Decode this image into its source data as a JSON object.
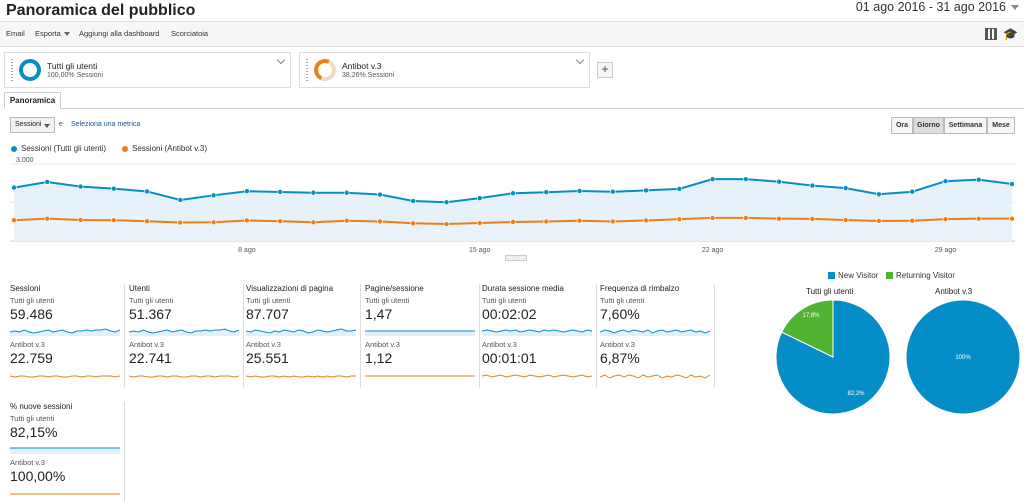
{
  "header": {
    "title": "Panoramica del pubblico",
    "date_range": "01 ago 2016 - 31 ago 2016"
  },
  "toolbar": {
    "email": "Email",
    "export": "Esporta",
    "add_dashboard": "Aggiungi alla dashboard",
    "shortcut": "Scorciatoia"
  },
  "segments": [
    {
      "name": "Tutti gli utenti",
      "sub": "100,00% Sessioni",
      "color": "#058dc7"
    },
    {
      "name": "Antibot v.3",
      "sub": "38,26% Sessioni",
      "color": "#ed7e17"
    }
  ],
  "tabs": {
    "overview": "Panoramica"
  },
  "controls": {
    "metric": "Sessioni",
    "vs": "e",
    "select_metric": "Seleziona una metrica",
    "periods": [
      "Ora",
      "Giorno",
      "Settimana",
      "Mese"
    ],
    "active_period": "Giorno"
  },
  "chart_data": {
    "type": "line",
    "series": [
      {
        "name": "Sessioni (Tutti gli utenti)",
        "color": "#058dc7",
        "values": [
          2080,
          2300,
          2120,
          2040,
          1930,
          1600,
          1780,
          1940,
          1910,
          1880,
          1880,
          1810,
          1560,
          1510,
          1670,
          1860,
          1900,
          1950,
          1920,
          1970,
          2030,
          2410,
          2410,
          2310,
          2160,
          2060,
          1820,
          1920,
          2330,
          2390,
          2220
        ]
      },
      {
        "name": "Sessioni (Antibot v.3)",
        "color": "#ed7e17",
        "values": [
          810,
          870,
          820,
          810,
          770,
          720,
          730,
          800,
          770,
          730,
          790,
          760,
          690,
          660,
          700,
          740,
          760,
          790,
          760,
          800,
          850,
          900,
          900,
          870,
          860,
          820,
          780,
          790,
          850,
          870,
          870
        ]
      }
    ],
    "x": [
      "1 ago",
      "2 ago",
      "3 ago",
      "4 ago",
      "5 ago",
      "6 ago",
      "7 ago",
      "8 ago",
      "9 ago",
      "10 ago",
      "11 ago",
      "12 ago",
      "13 ago",
      "14 ago",
      "15 ago",
      "16 ago",
      "17 ago",
      "18 ago",
      "19 ago",
      "20 ago",
      "21 ago",
      "22 ago",
      "23 ago",
      "24 ago",
      "25 ago",
      "26 ago",
      "27 ago",
      "28 ago",
      "29 ago",
      "30 ago",
      "31 ago"
    ],
    "x_tick_labels": [
      "8 ago",
      "15 ago",
      "22 ago",
      "29 ago"
    ],
    "y_tick_labels": [
      "3.000",
      "1.500"
    ],
    "ylim": [
      0,
      3000
    ],
    "legend_placement": "top-left"
  },
  "metrics": [
    {
      "title": "Sessioni",
      "sub1": "Tutti gli utenti",
      "v1": "59.486",
      "sub2": "Antibot v.3",
      "v2": "22.759"
    },
    {
      "title": "Utenti",
      "sub1": "Tutti gli utenti",
      "v1": "51.367",
      "sub2": "Antibot v.3",
      "v2": "22.741"
    },
    {
      "title": "Visualizzazioni di pagina",
      "sub1": "Tutti gli utenti",
      "v1": "87.707",
      "sub2": "Antibot v.3",
      "v2": "25.551"
    },
    {
      "title": "Pagine/sessione",
      "sub1": "Tutti gli utenti",
      "v1": "1,47",
      "sub2": "Antibot v.3",
      "v2": "1,12"
    },
    {
      "title": "Durata sessione media",
      "sub1": "Tutti gli utenti",
      "v1": "00:02:02",
      "sub2": "Antibot v.3",
      "v2": "00:01:01"
    },
    {
      "title": "Frequenza di rimbalzo",
      "sub1": "Tutti gli utenti",
      "v1": "7,60%",
      "sub2": "Antibot v.3",
      "v2": "6,87%"
    },
    {
      "title": "% nuove sessioni",
      "sub1": "Tutti gli utenti",
      "v1": "82,15%",
      "sub2": "Antibot v.3",
      "v2": "100,00%"
    }
  ],
  "pies": {
    "legend": [
      {
        "label": "New Visitor",
        "color": "#058dc7"
      },
      {
        "label": "Returning Visitor",
        "color": "#50b432"
      }
    ],
    "charts": [
      {
        "title": "Tutti gli utenti",
        "new": 82.2,
        "returning": 17.8,
        "new_label": "82,2%",
        "returning_label": "17,8%"
      },
      {
        "title": "Antibot v.3",
        "new": 100,
        "returning": 0,
        "new_label": "100%",
        "returning_label": ""
      }
    ]
  }
}
